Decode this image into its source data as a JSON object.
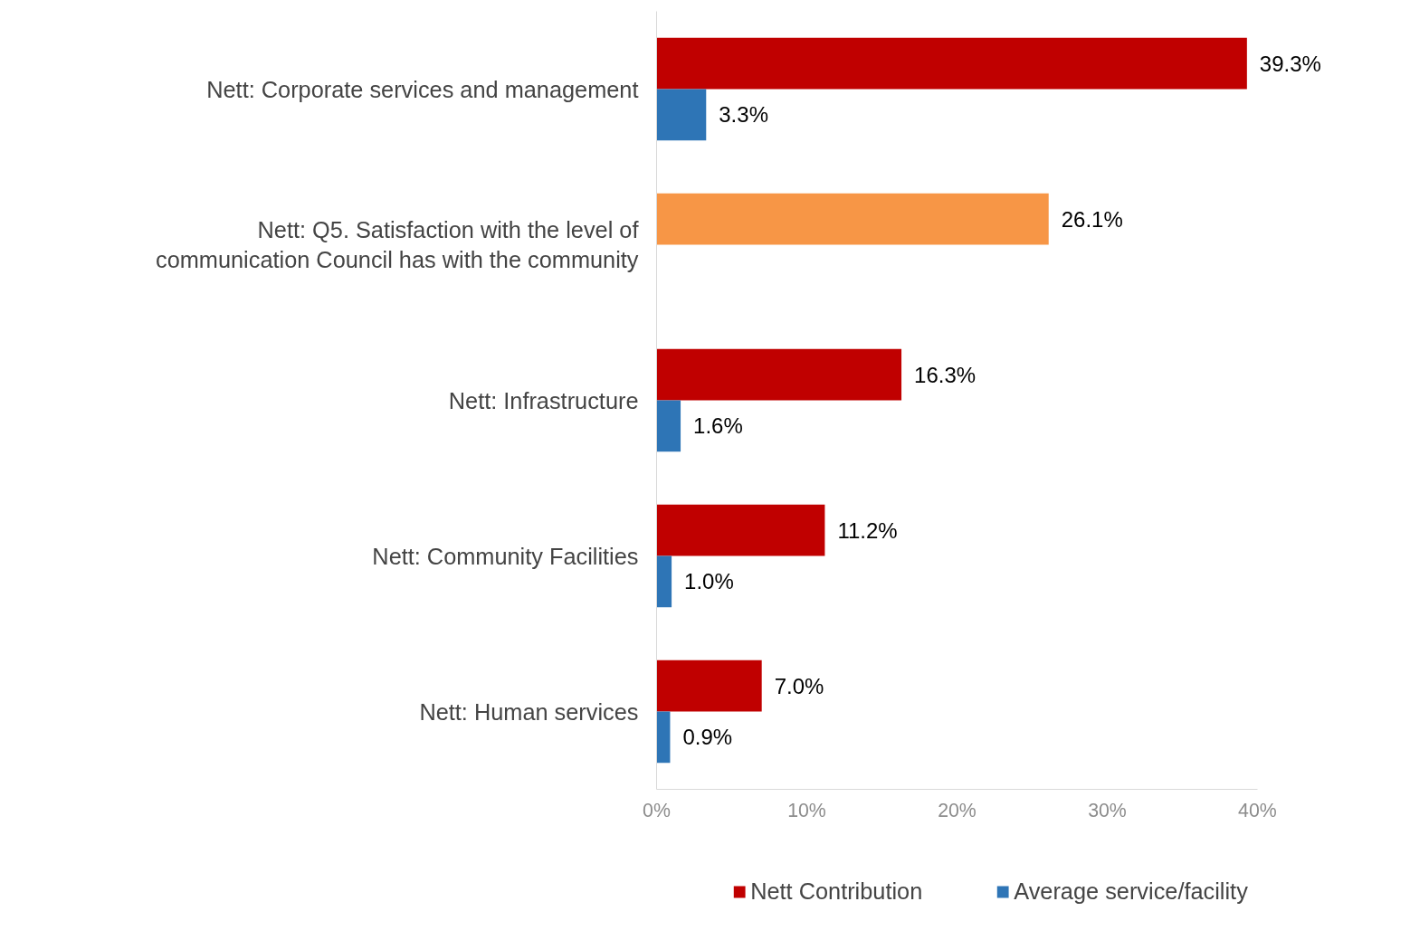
{
  "chart_data": {
    "type": "bar",
    "orientation": "horizontal",
    "categories": [
      "Nett: Corporate services and management",
      "Nett: Q5. Satisfaction with the level of communication Council has with the community",
      "Nett: Infrastructure",
      "Nett: Community Facilities",
      "Nett: Human services"
    ],
    "series": [
      {
        "name": "Nett Contribution",
        "color": "#c00000",
        "colors": [
          "#c00000",
          "#f79646",
          "#c00000",
          "#c00000",
          "#c00000"
        ],
        "values": [
          39.3,
          26.1,
          16.3,
          11.2,
          7.0
        ],
        "value_labels": [
          "39.3%",
          "26.1%",
          "16.3%",
          "11.2%",
          "7.0%"
        ]
      },
      {
        "name": "Average service/facility",
        "color": "#2e75b6",
        "values": [
          3.3,
          null,
          1.6,
          1.0,
          0.9
        ],
        "value_labels": [
          "3.3%",
          null,
          "1.6%",
          "1.0%",
          "0.9%"
        ]
      }
    ],
    "xlim": [
      0,
      40
    ],
    "xticks": [
      {
        "value": 0,
        "label": "0%"
      },
      {
        "value": 10,
        "label": "10%"
      },
      {
        "value": 20,
        "label": "20%"
      },
      {
        "value": 30,
        "label": "30%"
      },
      {
        "value": 40,
        "label": "40%"
      }
    ],
    "grid": false,
    "legend": "bottom"
  }
}
